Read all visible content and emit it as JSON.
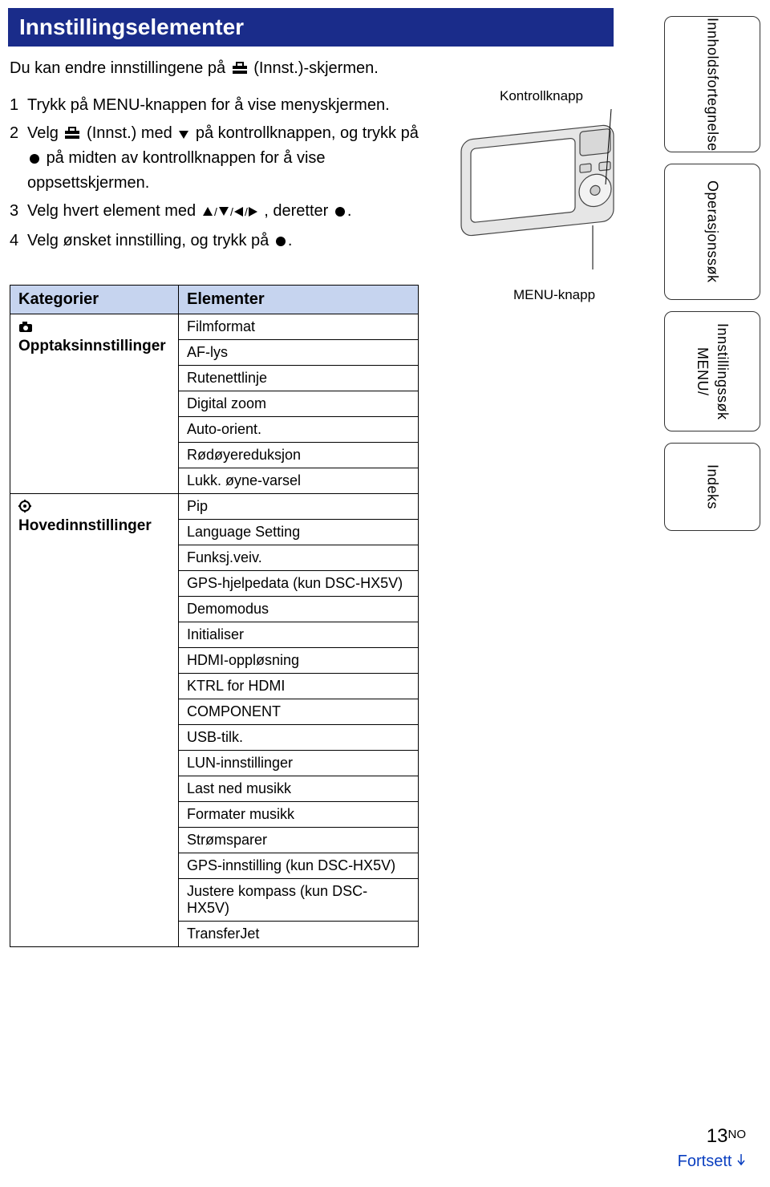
{
  "colors": {
    "header_bg": "#1a2c8a",
    "header_text": "#ffffff",
    "table_header_bg": "#c6d4ef",
    "link_color": "#0a3fc0",
    "body_text": "#000000"
  },
  "header": "Innstillingselementer",
  "intro_pre": "Du kan endre innstillingene på ",
  "intro_post": " (Innst.)-skjermen.",
  "steps": {
    "s1": {
      "n": "1",
      "text": "Trykk på MENU-knappen for å vise menyskjermen."
    },
    "s2": {
      "n": "2",
      "pre": "Velg ",
      "mid": " (Innst.) med ",
      "post": " på kontrollknappen, og trykk på ",
      "tail": " på midten av kontrollknappen for å vise oppsettskjermen."
    },
    "s3": {
      "n": "3",
      "pre": "Velg hvert element med ",
      "post": ", deretter "
    },
    "s4": {
      "n": "4",
      "pre": "Velg ønsket innstilling, og trykk på "
    }
  },
  "camera": {
    "top_label": "Kontrollknapp",
    "bottom_label": "MENU-knapp"
  },
  "side": {
    "t1": "Innholdsfortegnelse",
    "t2": "Operasjonssøk",
    "t3a": "MENU/",
    "t3b": "Innstillingssøk",
    "t4": "Indeks"
  },
  "table": {
    "col1": "Kategorier",
    "col2": "Elementer",
    "cat1": "Opptaksinnstillinger",
    "cat2": "Hovedinnstillinger",
    "items1": [
      "Filmformat",
      "AF-lys",
      "Rutenettlinje",
      "Digital zoom",
      "Auto-orient.",
      "Rødøyereduksjon",
      "Lukk. øyne-varsel"
    ],
    "items2": [
      "Pip",
      "Language Setting",
      "Funksj.veiv.",
      "GPS-hjelpedata (kun DSC-HX5V)",
      "Demomodus",
      "Initialiser",
      "HDMI-oppløsning",
      "KTRL for HDMI",
      "COMPONENT",
      "USB-tilk.",
      "LUN-innstillinger",
      "Last ned musikk",
      "Formater musikk",
      "Strømsparer",
      "GPS-innstilling (kun DSC-HX5V)",
      "Justere kompass (kun DSC-HX5V)",
      "TransferJet"
    ]
  },
  "footer": {
    "page": "13",
    "sup": "NO",
    "continue": "Fortsett"
  }
}
